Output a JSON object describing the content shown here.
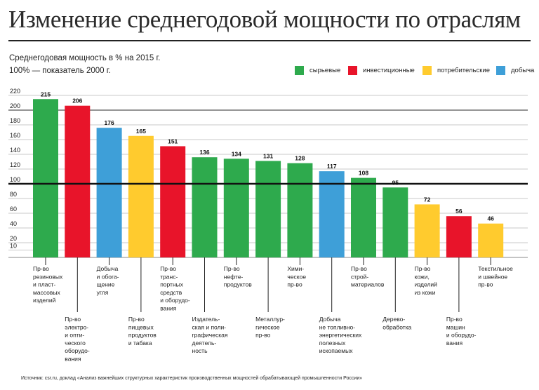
{
  "title": "Изменение среднегодовой мощности по отраслям",
  "subtitle_line1": "Среднегодовая мощность в % на 2015 г.",
  "subtitle_line2": "100% — показатель 2000 г.",
  "source": "Источник: csr.ru, доклад «Анализ важнейших структурных характеристик производственных мощностей обрабатывающей промышленности России»",
  "legend": [
    {
      "label": "сырьевые",
      "color": "#2eaa4d"
    },
    {
      "label": "инвестиционные",
      "color": "#e8142a"
    },
    {
      "label": "потребительские",
      "color": "#ffcb2e"
    },
    {
      "label": "добыча",
      "color": "#3e9fd8"
    }
  ],
  "chart_data": {
    "type": "bar",
    "title": "Изменение среднегодовой мощности по отраслям",
    "ylim": [
      0,
      220
    ],
    "yticks": [
      10,
      20,
      40,
      60,
      80,
      100,
      120,
      140,
      160,
      180,
      200,
      220
    ],
    "reference_line": 100,
    "categories": [
      {
        "lines": [
          "Пр-во",
          "резиновых",
          "и пласт-",
          "массовых",
          "изделий"
        ],
        "value": 215,
        "group": "сырьевые",
        "pos": "upper"
      },
      {
        "lines": [
          "Пр-во",
          "электро-",
          "и опти-",
          "ческого",
          "оборудо-",
          "вания"
        ],
        "value": 206,
        "group": "инвестиционные",
        "pos": "lower"
      },
      {
        "lines": [
          "Добыча",
          "и обога-",
          "щение",
          "угля"
        ],
        "value": 176,
        "group": "добыча",
        "pos": "upper"
      },
      {
        "lines": [
          "Пр-во",
          "пищевых",
          "продуктов",
          "и табака"
        ],
        "value": 165,
        "group": "потребительские",
        "pos": "lower"
      },
      {
        "lines": [
          "Пр-во",
          "транс-",
          "портных",
          "средств",
          "и оборудо-",
          "вания"
        ],
        "value": 151,
        "group": "инвестиционные",
        "pos": "upper"
      },
      {
        "lines": [
          "Издатель-",
          "ская и поли-",
          "графическая",
          "деятель-",
          "ность"
        ],
        "value": 136,
        "group": "сырьевые",
        "pos": "lower"
      },
      {
        "lines": [
          "Пр-во",
          "нефте-",
          "продуктов"
        ],
        "value": 134,
        "group": "сырьевые",
        "pos": "upper"
      },
      {
        "lines": [
          "Металлур-",
          "гическое",
          "пр-во"
        ],
        "value": 131,
        "group": "сырьевые",
        "pos": "lower"
      },
      {
        "lines": [
          "Хими-",
          "ческое",
          "пр-во"
        ],
        "value": 128,
        "group": "сырьевые",
        "pos": "upper"
      },
      {
        "lines": [
          "Добыча",
          "не топливно-",
          "энергетических",
          "полезных",
          "ископаемых"
        ],
        "value": 117,
        "group": "добыча",
        "pos": "lower"
      },
      {
        "lines": [
          "Пр-во",
          "строй-",
          "материалов"
        ],
        "value": 108,
        "group": "сырьевые",
        "pos": "upper"
      },
      {
        "lines": [
          "Дерево-",
          "обработка"
        ],
        "value": 95,
        "group": "сырьевые",
        "pos": "lower"
      },
      {
        "lines": [
          "Пр-во",
          "кожи,",
          "изделий",
          "из кожи"
        ],
        "value": 72,
        "group": "потребительские",
        "pos": "upper"
      },
      {
        "lines": [
          "Пр-во",
          "машин",
          "и оборудо-",
          "вания"
        ],
        "value": 56,
        "group": "инвестиционные",
        "pos": "lower"
      },
      {
        "lines": [
          "Текстильное",
          "и швейное",
          "пр-во"
        ],
        "value": 46,
        "group": "потребительские",
        "pos": "upper"
      }
    ],
    "colors": {
      "сырьевые": "#2eaa4d",
      "инвестиционные": "#e8142a",
      "потребительские": "#ffcb2e",
      "добыча": "#3e9fd8"
    }
  }
}
